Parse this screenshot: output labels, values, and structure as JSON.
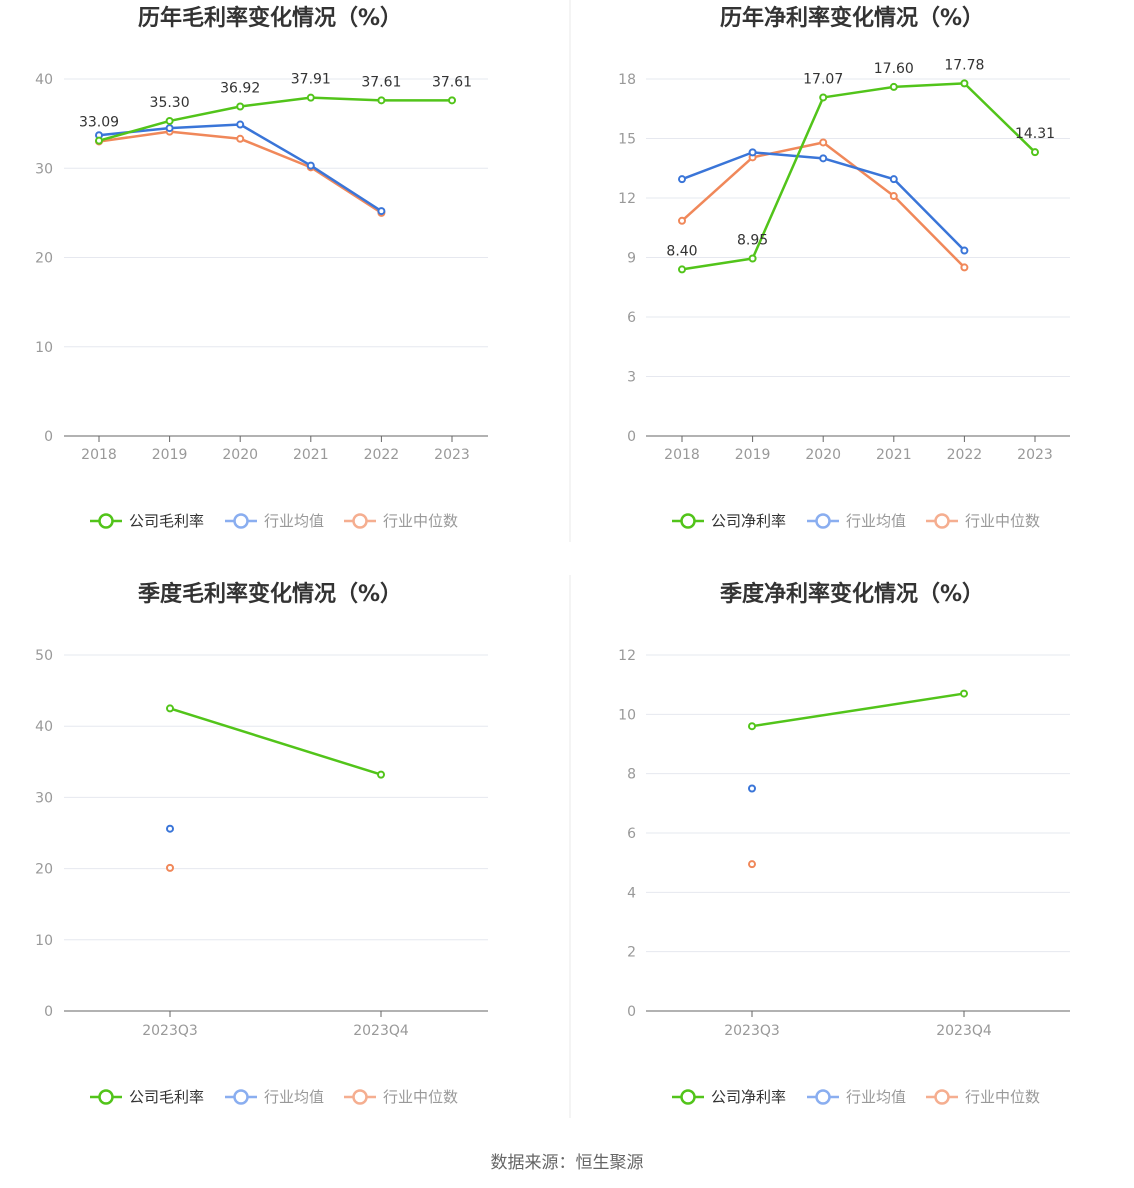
{
  "source": "数据来源：恒生聚源",
  "colors": {
    "company": "#52c41a",
    "avg": "#3a75d8",
    "median": "#f0885a",
    "grid": "#e6e8ef",
    "axis": "#666666",
    "divider": "#e8e8e8"
  },
  "chart_data": [
    {
      "type": "line",
      "title": "历年毛利率变化情况（%）",
      "categories": [
        "2018",
        "2019",
        "2020",
        "2021",
        "2022",
        "2023"
      ],
      "ylim": [
        0,
        40
      ],
      "yticks": [
        0,
        10,
        20,
        30,
        40
      ],
      "grid": true,
      "legend": "bottom",
      "series": [
        {
          "name": "公司毛利率",
          "key": "company",
          "values": [
            33.09,
            35.3,
            36.92,
            37.91,
            37.61,
            37.61
          ],
          "labels": [
            "33.09",
            "35.30",
            "36.92",
            "37.91",
            "37.61",
            "37.61"
          ]
        },
        {
          "name": "行业均值",
          "key": "avg",
          "values": [
            33.7,
            34.5,
            34.9,
            30.3,
            25.2,
            null
          ]
        },
        {
          "name": "行业中位数",
          "key": "median",
          "values": [
            33.0,
            34.1,
            33.3,
            30.1,
            25.0,
            null
          ]
        }
      ]
    },
    {
      "type": "line",
      "title": "历年净利率变化情况（%）",
      "categories": [
        "2018",
        "2019",
        "2020",
        "2021",
        "2022",
        "2023"
      ],
      "ylim": [
        0,
        18
      ],
      "yticks": [
        0,
        3,
        6,
        9,
        12,
        15,
        18
      ],
      "grid": true,
      "legend": "bottom",
      "series": [
        {
          "name": "公司净利率",
          "key": "company",
          "values": [
            8.4,
            8.95,
            17.07,
            17.6,
            17.78,
            14.31
          ],
          "labels": [
            "8.40",
            "8.95",
            "17.07",
            "17.60",
            "17.78",
            "14.31"
          ]
        },
        {
          "name": "行业均值",
          "key": "avg",
          "values": [
            12.95,
            14.3,
            14.0,
            12.95,
            9.35,
            null
          ]
        },
        {
          "name": "行业中位数",
          "key": "median",
          "values": [
            10.85,
            14.05,
            14.8,
            12.1,
            8.5,
            null
          ]
        }
      ]
    },
    {
      "type": "line",
      "title": "季度毛利率变化情况（%）",
      "categories": [
        "2023Q3",
        "2023Q4"
      ],
      "ylim": [
        0,
        50
      ],
      "yticks": [
        0,
        10,
        20,
        30,
        40,
        50
      ],
      "grid": true,
      "legend": "bottom",
      "series": [
        {
          "name": "公司毛利率",
          "key": "company",
          "values": [
            42.5,
            33.2
          ]
        },
        {
          "name": "行业均值",
          "key": "avg",
          "values": [
            25.6,
            null
          ]
        },
        {
          "name": "行业中位数",
          "key": "median",
          "values": [
            20.1,
            null
          ]
        }
      ]
    },
    {
      "type": "line",
      "title": "季度净利率变化情况（%）",
      "categories": [
        "2023Q3",
        "2023Q4"
      ],
      "ylim": [
        0,
        12
      ],
      "yticks": [
        0,
        2,
        4,
        6,
        8,
        10,
        12
      ],
      "grid": true,
      "legend": "bottom",
      "series": [
        {
          "name": "公司净利率",
          "key": "company",
          "values": [
            9.6,
            10.7
          ]
        },
        {
          "name": "行业均值",
          "key": "avg",
          "values": [
            7.5,
            null
          ]
        },
        {
          "name": "行业中位数",
          "key": "median",
          "values": [
            4.95,
            null
          ]
        }
      ]
    }
  ]
}
